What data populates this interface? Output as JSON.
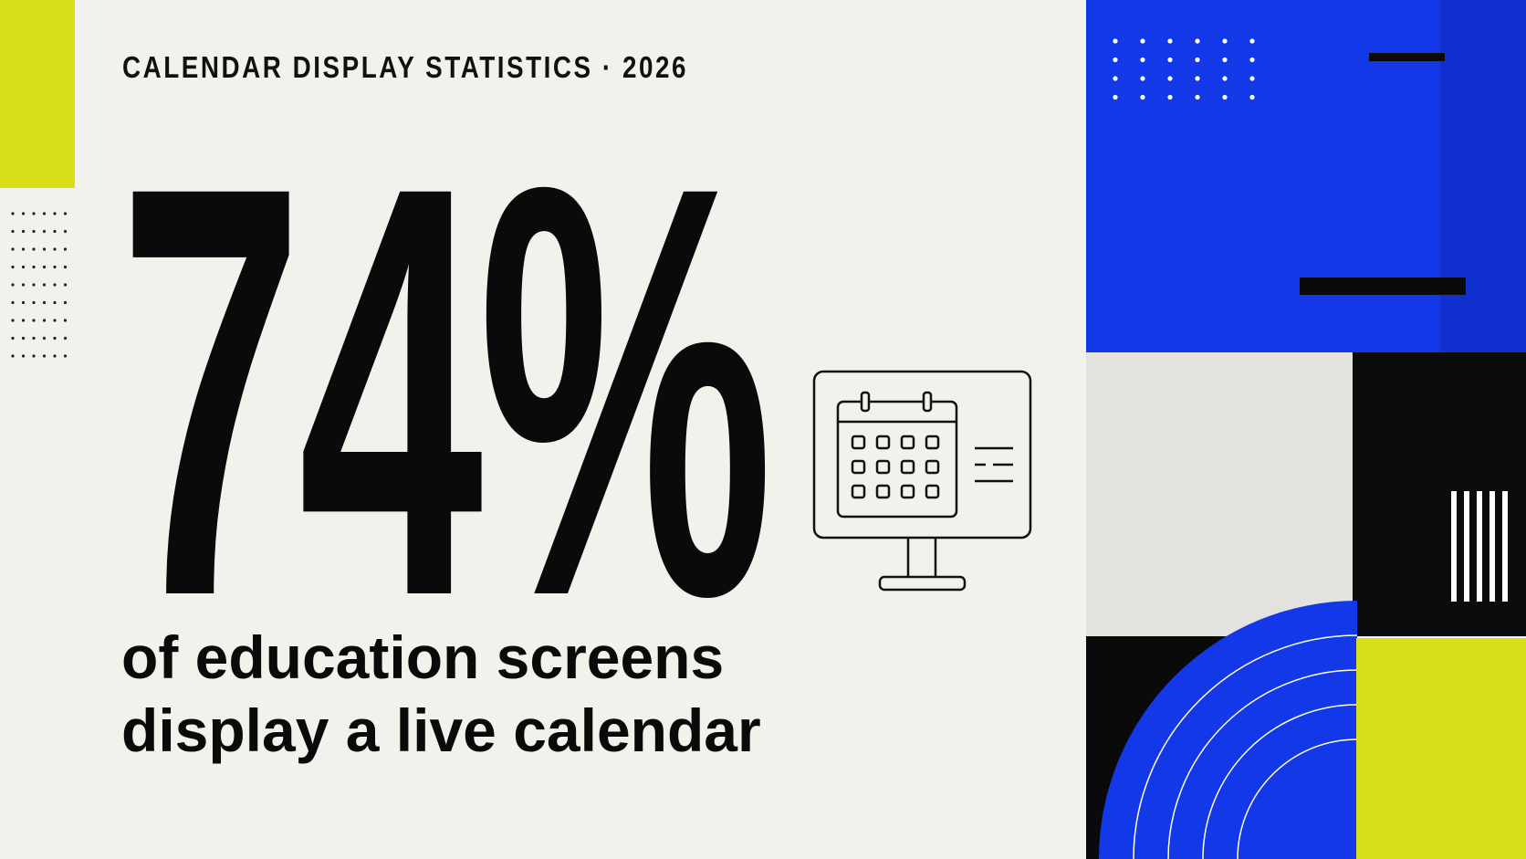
{
  "eyebrow": "CALENDAR DISPLAY STATISTICS · 2026",
  "stat": {
    "value": "74%",
    "caption": [
      "of education screens",
      "display a live calendar"
    ]
  }
}
